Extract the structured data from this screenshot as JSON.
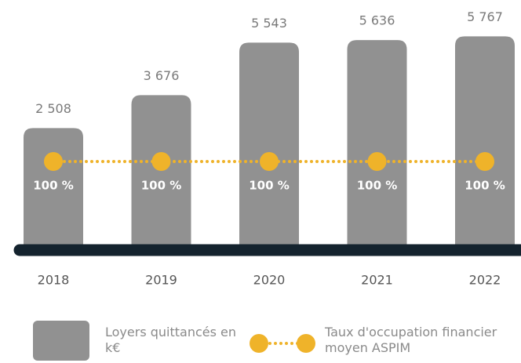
{
  "chart_data": {
    "type": "bar",
    "categories": [
      "2018",
      "2019",
      "2020",
      "2021",
      "2022"
    ],
    "series": [
      {
        "name": "Loyers quittancés en k€",
        "type": "bar",
        "color": "#919191",
        "values": [
          2508,
          3676,
          5543,
          5636,
          5767
        ],
        "value_labels": [
          "2 508",
          "3 676",
          "5 543",
          "5 636",
          "5 767"
        ]
      },
      {
        "name": "Taux d'occupation financier moyen ASPIM",
        "type": "line",
        "axis": "y2",
        "color": "#efb32a",
        "values": [
          100,
          100,
          100,
          100,
          100
        ],
        "value_labels": [
          "100 %",
          "100 %",
          "100 %",
          "100 %",
          "100 %"
        ]
      }
    ],
    "ylim": [
      -1800,
      6000
    ],
    "y2lim": [
      0,
      250
    ]
  }
}
